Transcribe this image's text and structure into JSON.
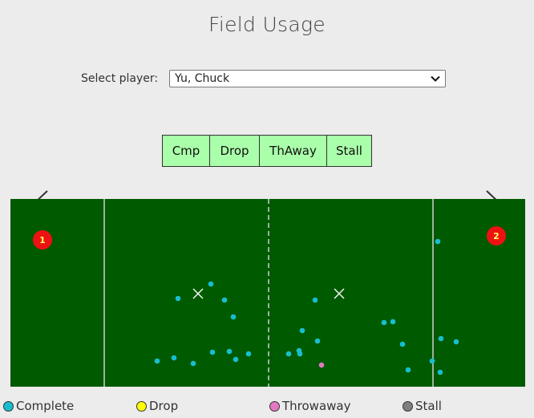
{
  "page": {
    "title": "Field Usage"
  },
  "player_select": {
    "label": "Select player:",
    "value": "Yu, Chuck"
  },
  "filters": [
    {
      "label": "Cmp"
    },
    {
      "label": "Drop"
    },
    {
      "label": "ThAway"
    },
    {
      "label": "Stall"
    }
  ],
  "field": {
    "markers": [
      {
        "label": "1"
      },
      {
        "label": "2"
      }
    ],
    "colors": {
      "complete": "#17becf",
      "drop": "#ffff00",
      "throwaway": "#e377c2",
      "stall": "#7f7f7f",
      "field": "#005a00",
      "marker": "#ee1111"
    }
  },
  "legend": [
    {
      "label": "Complete",
      "color": "#17becf"
    },
    {
      "label": "Drop",
      "color": "#ffff00"
    },
    {
      "label": "Throwaway",
      "color": "#e377c2"
    },
    {
      "label": "Stall",
      "color": "#7f7f7f"
    }
  ]
}
